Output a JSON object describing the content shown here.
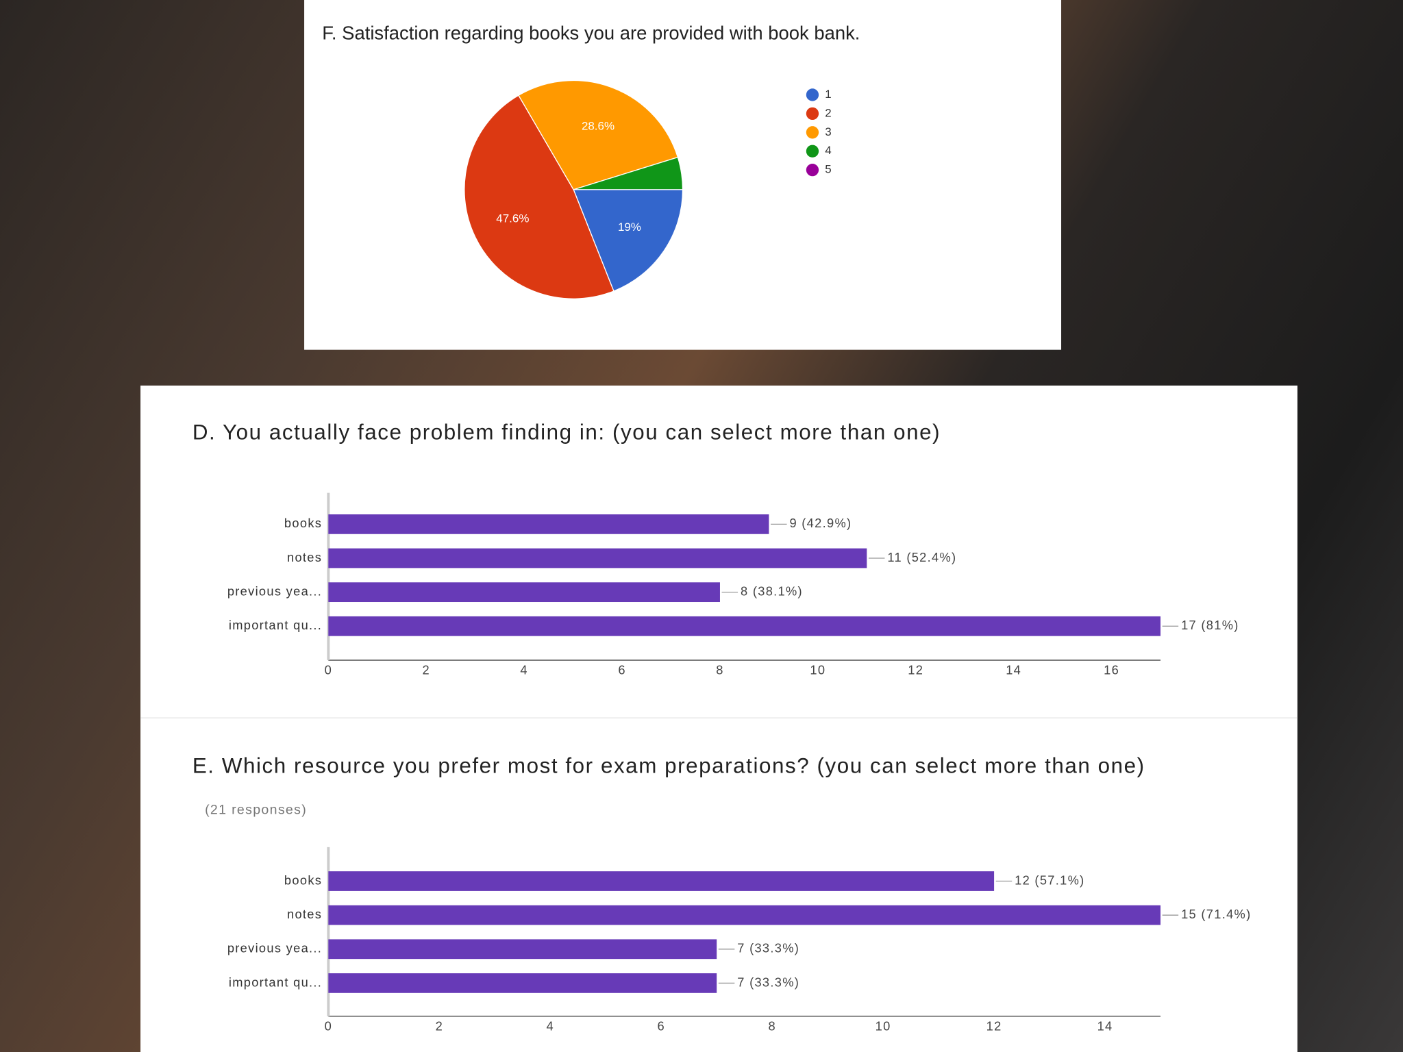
{
  "chart_data": [
    {
      "type": "pie",
      "title": "F. Satisfaction regarding books you are provided with book bank.",
      "categories": [
        "1",
        "2",
        "3",
        "4",
        "5"
      ],
      "values": [
        19,
        47.6,
        28.6,
        4.8,
        0
      ],
      "value_labels": [
        "19%",
        "47.6%",
        "28.6%",
        null,
        null
      ],
      "colors": [
        "#3366cc",
        "#dc3912",
        "#ff9900",
        "#109618",
        "#990099"
      ],
      "legend": "right"
    },
    {
      "type": "bar",
      "orientation": "horizontal",
      "title": "D. You actually face problem finding in: (you can select more than one)",
      "categories": [
        "books",
        "notes",
        "previous yea...",
        "important qu..."
      ],
      "values": [
        9,
        11,
        8,
        17
      ],
      "value_labels": [
        "9 (42.9%)",
        "11 (52.4%)",
        "8 (38.1%)",
        "17 (81%)"
      ],
      "color": "#673ab7",
      "xlim": [
        0,
        17
      ],
      "xticks": [
        0,
        2,
        4,
        6,
        8,
        10,
        12,
        14,
        16
      ]
    },
    {
      "type": "bar",
      "orientation": "horizontal",
      "title": "E. Which resource you prefer most for exam preparations? (you can select more than one)",
      "subtitle": "(21 responses)",
      "categories": [
        "books",
        "notes",
        "previous yea...",
        "important qu..."
      ],
      "values": [
        12,
        15,
        7,
        7
      ],
      "value_labels": [
        "12 (57.1%)",
        "15 (71.4%)",
        "7 (33.3%)",
        "7 (33.3%)"
      ],
      "color": "#673ab7",
      "xlim": [
        0,
        15
      ],
      "xticks": [
        0,
        2,
        4,
        6,
        8,
        10,
        12,
        14
      ]
    }
  ]
}
